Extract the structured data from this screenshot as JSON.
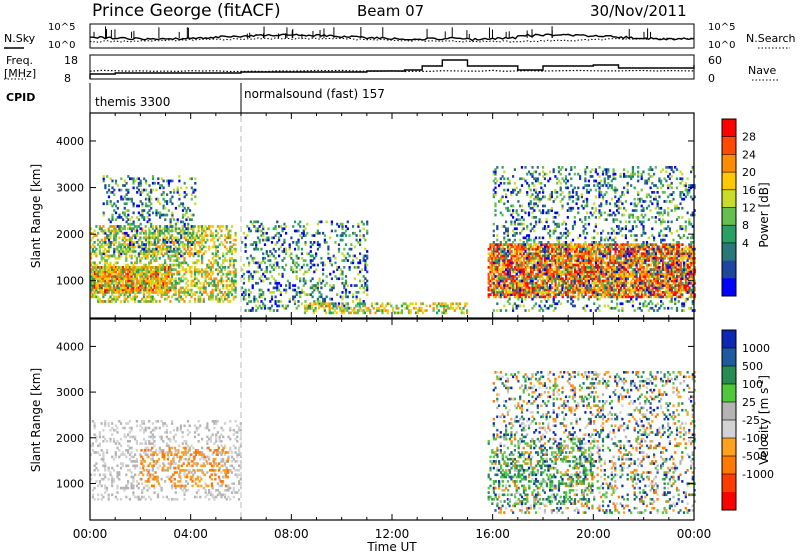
{
  "header": {
    "station": "Prince George (fitACF)",
    "beam": "Beam 07",
    "date": "30/Nov/2011"
  },
  "noise_panel": {
    "left_label": "N.Sky",
    "right_label": "N.Search",
    "left_ticks": [
      "10^5",
      "10^0"
    ],
    "right_ticks": [
      "10^5",
      "10^0"
    ]
  },
  "freq_panel": {
    "left_label_1": "Freq.",
    "left_label_2": "[MHz]",
    "right_label": "Nave",
    "left_ticks": [
      "18",
      "8"
    ],
    "right_ticks": [
      "60",
      "0"
    ]
  },
  "cpid_panel": {
    "label": "CPID",
    "programs": [
      "themis 3300",
      "normalsound (fast) 157"
    ]
  },
  "chart_data": [
    {
      "type": "heatmap",
      "name": "Power",
      "xlabel": "",
      "ylabel": "Slant Range [km]",
      "x_ticks": [
        "00:00",
        "04:00",
        "08:00",
        "12:00",
        "16:00",
        "20:00",
        "00:00"
      ],
      "y_ticks": [
        "1000",
        "2000",
        "3000",
        "4000"
      ],
      "ylim": [
        200,
        4600
      ],
      "colorbar": {
        "label": "Power [dB]",
        "ticks": [
          "28",
          "24",
          "20",
          "16",
          "12",
          "8",
          "4"
        ],
        "colors": [
          "#ff0000",
          "#ff4a00",
          "#ff8c00",
          "#ffc800",
          "#c8dc28",
          "#64be50",
          "#28a064",
          "#287878",
          "#1e46a0",
          "#0000ff"
        ]
      },
      "echo_regions": [
        {
          "t0": 0.0,
          "t1": 3.2,
          "r0": 700,
          "r1": 1300,
          "level": "high"
        },
        {
          "t0": 0.0,
          "t1": 5.8,
          "r0": 500,
          "r1": 2200,
          "level": "mid"
        },
        {
          "t0": 0.5,
          "t1": 4.2,
          "r0": 1500,
          "r1": 3300,
          "level": "low"
        },
        {
          "t0": 6.0,
          "t1": 11.0,
          "r0": 300,
          "r1": 2300,
          "level": "low"
        },
        {
          "t0": 8.5,
          "t1": 15.0,
          "r0": 250,
          "r1": 500,
          "level": "mid"
        },
        {
          "t0": 15.8,
          "t1": 24.0,
          "r0": 600,
          "r1": 1800,
          "level": "high"
        },
        {
          "t0": 16.0,
          "t1": 24.0,
          "r0": 300,
          "r1": 3500,
          "level": "low"
        }
      ]
    },
    {
      "type": "heatmap",
      "name": "Velocity",
      "xlabel": "Time UT",
      "ylabel": "Slant Range [km]",
      "x_ticks": [
        "00:00",
        "04:00",
        "08:00",
        "12:00",
        "16:00",
        "20:00",
        "00:00"
      ],
      "y_ticks": [
        "1000",
        "2000",
        "3000",
        "4000"
      ],
      "ylim": [
        200,
        4600
      ],
      "colorbar": {
        "label": "Velocity [m s",
        "label_superscript": "-1",
        "label_close": "]",
        "ticks": [
          "1000",
          "500",
          "100",
          "25",
          "-25",
          "-100",
          "-500",
          "-1000"
        ],
        "colors": [
          "#0a28b4",
          "#1e5aa0",
          "#288c50",
          "#50c83c",
          "#b4b4b4",
          "#d2d2d2",
          "#ffa01e",
          "#ff7800",
          "#ff3c00",
          "#ff0000"
        ]
      },
      "echo_regions": [
        {
          "t0": 0.0,
          "t1": 6.0,
          "r0": 600,
          "r1": 2400,
          "level": "ground"
        },
        {
          "t0": 2.0,
          "t1": 5.5,
          "r0": 900,
          "r1": 1800,
          "level": "away"
        },
        {
          "t0": 15.8,
          "t1": 20.0,
          "r0": 500,
          "r1": 2000,
          "level": "toward"
        },
        {
          "t0": 16.0,
          "t1": 24.0,
          "r0": 300,
          "r1": 3500,
          "level": "mixed"
        }
      ]
    }
  ]
}
